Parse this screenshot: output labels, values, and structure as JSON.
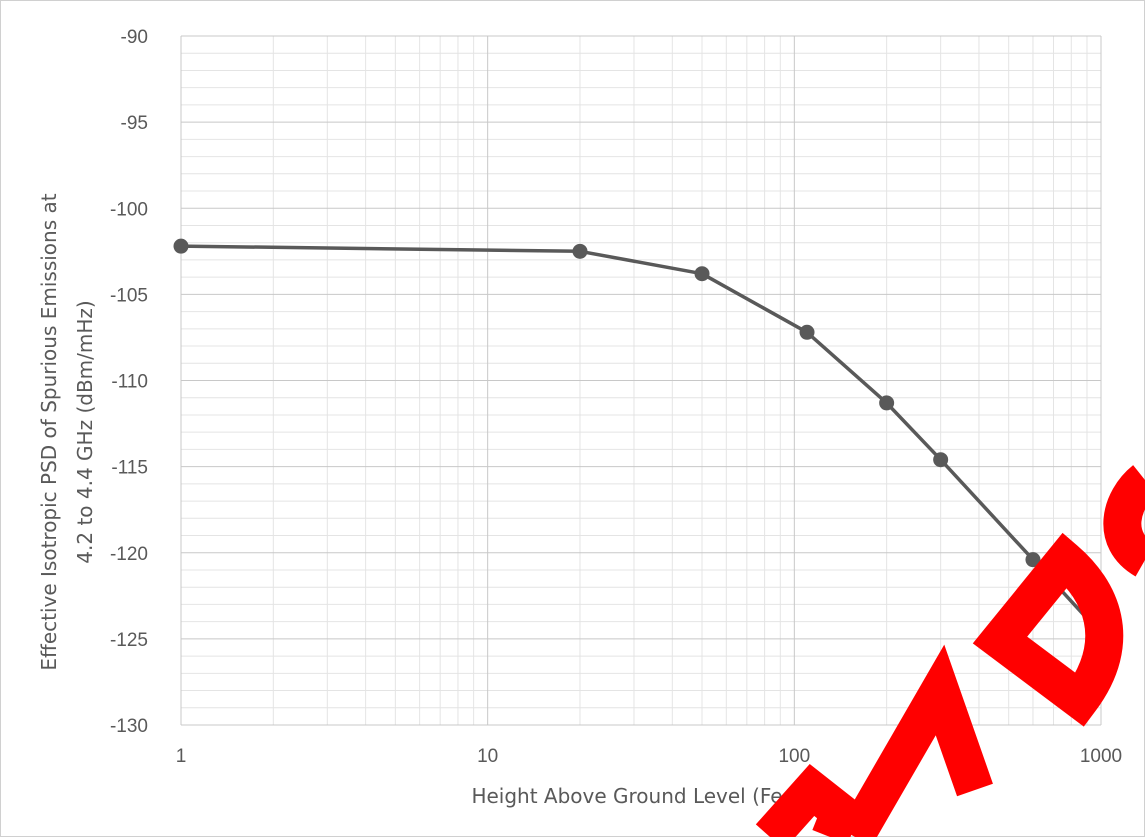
{
  "chart_data": {
    "type": "line",
    "title": "",
    "xlabel": "Height Above Ground Level (Feet)",
    "ylabel_lines": [
      "Effective Isotropic PSD of Spurious Emissions at",
      "4.2 to 4.4 GHz (dBm/mHz)"
    ],
    "x_scale": "log",
    "xlim": [
      1,
      1000
    ],
    "ylim": [
      -130,
      -90
    ],
    "x_ticks": [
      1,
      10,
      100,
      1000
    ],
    "x_tick_labels": [
      "1",
      "10",
      "100",
      "1000"
    ],
    "y_ticks": [
      -90,
      -95,
      -100,
      -105,
      -110,
      -115,
      -120,
      -125,
      -130
    ],
    "y_tick_labels": [
      "-90",
      "-95",
      "-100",
      "-105",
      "-110",
      "-115",
      "-120",
      "-125",
      "-130"
    ],
    "grid": true,
    "legend": "none",
    "series": [
      {
        "color": "#595959",
        "marker": "circle",
        "x": [
          1,
          20,
          50,
          110,
          200,
          300,
          600,
          1000
        ],
        "y": [
          -102.2,
          -102.5,
          -103.8,
          -107.2,
          -111.3,
          -114.6,
          -120.4,
          -124.7
        ]
      }
    ]
  },
  "watermark": {
    "color": "#ff0000"
  }
}
